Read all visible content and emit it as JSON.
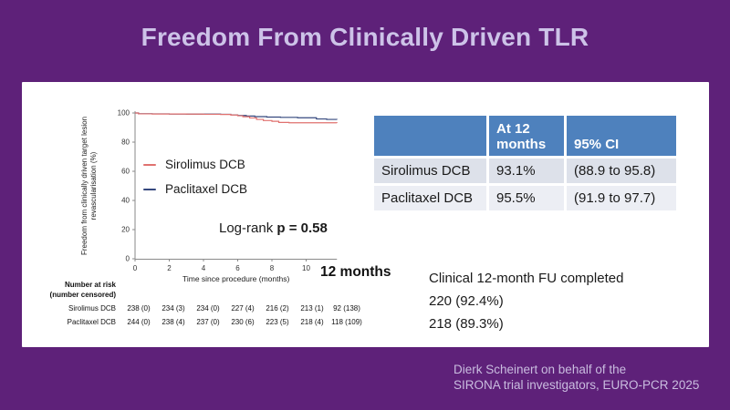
{
  "slide": {
    "title": "Freedom From Clinically Driven TLR",
    "background_color": "#5e2179",
    "title_color": "#cdc3e8"
  },
  "chart_data": {
    "type": "line",
    "subtype": "kaplan-meier-step",
    "xlabel": "Time since procedure (months)",
    "ylabel": "Freedom from clinically driven target lesion revascularisation (%)",
    "ylabel_lines": [
      "Freedom from clinically driven target lesion",
      "revascularisation (%)"
    ],
    "xlim": [
      0,
      11.8
    ],
    "ylim": [
      0,
      100
    ],
    "xticks": [
      0,
      2,
      4,
      6,
      8,
      10
    ],
    "yticks": [
      0,
      20,
      40,
      60,
      80,
      100
    ],
    "grid": false,
    "legend_position": "inside-left",
    "series": [
      {
        "name": "Sirolimus DCB",
        "color": "#e0716f",
        "points": [
          [
            0,
            100
          ],
          [
            0.2,
            99.4
          ],
          [
            1,
            99.3
          ],
          [
            2,
            99.3
          ],
          [
            3,
            99.2
          ],
          [
            4,
            99.1
          ],
          [
            5,
            99.0
          ],
          [
            5.6,
            98.6
          ],
          [
            6.0,
            98.1
          ],
          [
            6.3,
            97.4
          ],
          [
            6.7,
            96.6
          ],
          [
            7.1,
            95.6
          ],
          [
            7.5,
            94.8
          ],
          [
            8.0,
            94.3
          ],
          [
            8.4,
            93.5
          ],
          [
            9.0,
            93.3
          ],
          [
            11.8,
            93.1
          ]
        ]
      },
      {
        "name": "Paclitaxel DCB",
        "color": "#35487e",
        "points": [
          [
            0,
            100
          ],
          [
            0.2,
            99.5
          ],
          [
            1,
            99.4
          ],
          [
            2,
            99.3
          ],
          [
            3,
            99.2
          ],
          [
            4,
            99.2
          ],
          [
            5,
            99.1
          ],
          [
            5.6,
            98.7
          ],
          [
            6.0,
            98.3
          ],
          [
            6.5,
            97.9
          ],
          [
            7.0,
            97.5
          ],
          [
            7.7,
            97.2
          ],
          [
            8.5,
            97.0
          ],
          [
            9.5,
            96.7
          ],
          [
            10.6,
            95.9
          ],
          [
            11.2,
            95.6
          ],
          [
            11.8,
            95.5
          ]
        ]
      }
    ],
    "annotations": [
      "Log-rank p = 0.58",
      "12 months"
    ]
  },
  "legend": {
    "items": [
      {
        "label": "Sirolimus DCB",
        "color": "#e0716f"
      },
      {
        "label": "Paclitaxel DCB",
        "color": "#35487e"
      }
    ]
  },
  "stats": {
    "logrank_prefix": "Log-rank ",
    "logrank_value": "p = 0.58",
    "timepoint_label": "12 months"
  },
  "risk_table": {
    "header_line1": "Number at risk",
    "header_line2": "(number censored)",
    "rows": [
      {
        "label": "Sirolimus DCB",
        "values": [
          "238 (0)",
          "234 (3)",
          "234 (0)",
          "227 (4)",
          "216 (2)",
          "213 (1)",
          "92 (138)"
        ]
      },
      {
        "label": "Paclitaxel DCB",
        "values": [
          "244 (0)",
          "238 (4)",
          "237 (0)",
          "230 (6)",
          "223 (5)",
          "218 (4)",
          "118 (109)"
        ]
      }
    ]
  },
  "summary_table": {
    "header_blank": "",
    "header_col1": "At 12 months",
    "header_col2": "95% CI",
    "rows": [
      {
        "label": "Sirolimus DCB",
        "value": "93.1%",
        "ci": "(88.9 to 95.8)"
      },
      {
        "label": "Paclitaxel DCB",
        "value": "95.5%",
        "ci": "(91.9 to 97.7)"
      }
    ]
  },
  "followup": {
    "title": "Clinical 12-month FU completed",
    "line1": "220 (92.4%)",
    "line2": "218 (89.3%)"
  },
  "attribution": {
    "line1": "Dierk Scheinert on behalf of the",
    "line2": "SIRONA trial investigators, EURO-PCR 2025"
  }
}
